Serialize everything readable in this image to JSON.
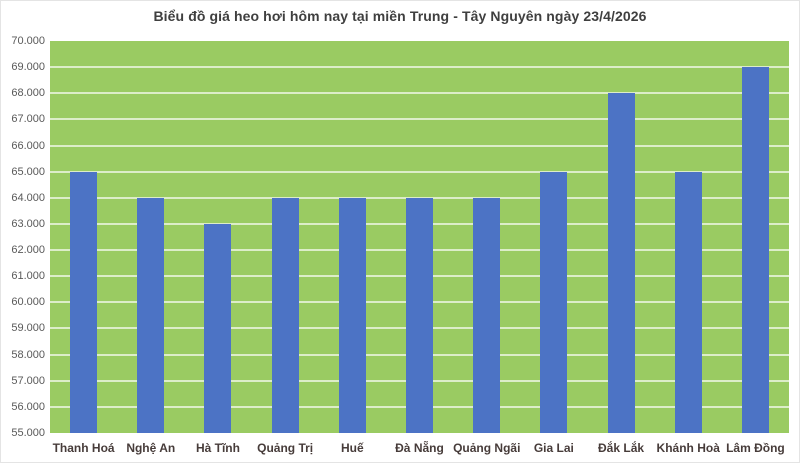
{
  "chart_data": {
    "type": "bar",
    "title": "Biểu đồ giá heo hơi hôm nay tại miền Trung - Tây Nguyên ngày 23/4/2026",
    "xlabel": "",
    "ylabel": "",
    "categories": [
      "Thanh Hoá",
      "Nghệ An",
      "Hà Tĩnh",
      "Quảng Trị",
      "Huế",
      "Đà Nẵng",
      "Quảng Ngãi",
      "Gia Lai",
      "Đắk Lắk",
      "Khánh Hoà",
      "Lâm Đồng"
    ],
    "values": [
      65000,
      64000,
      63000,
      64000,
      64000,
      64000,
      64000,
      65000,
      68000,
      65000,
      69000
    ],
    "ylim": [
      55000,
      70000
    ],
    "y_tick_step": 1000,
    "y_tick_labels": [
      "70.000",
      "69.000",
      "68.000",
      "67.000",
      "66.000",
      "65.000",
      "64.000",
      "63.000",
      "62.000",
      "61.000",
      "60.000",
      "59.000",
      "58.000",
      "57.000",
      "56.000",
      "55.000"
    ],
    "grid": "horizontal-only",
    "legend_position": "none",
    "colors": {
      "bar_fill": "#4C73C5",
      "plot_background": "#9ACB62",
      "gridline": "rgba(255,255,255,0.65)",
      "title_text": "#3F3F3F",
      "y_tick_text": "#595959",
      "x_tick_text": "#473C3A",
      "page_background": "#FFFFFF"
    }
  }
}
